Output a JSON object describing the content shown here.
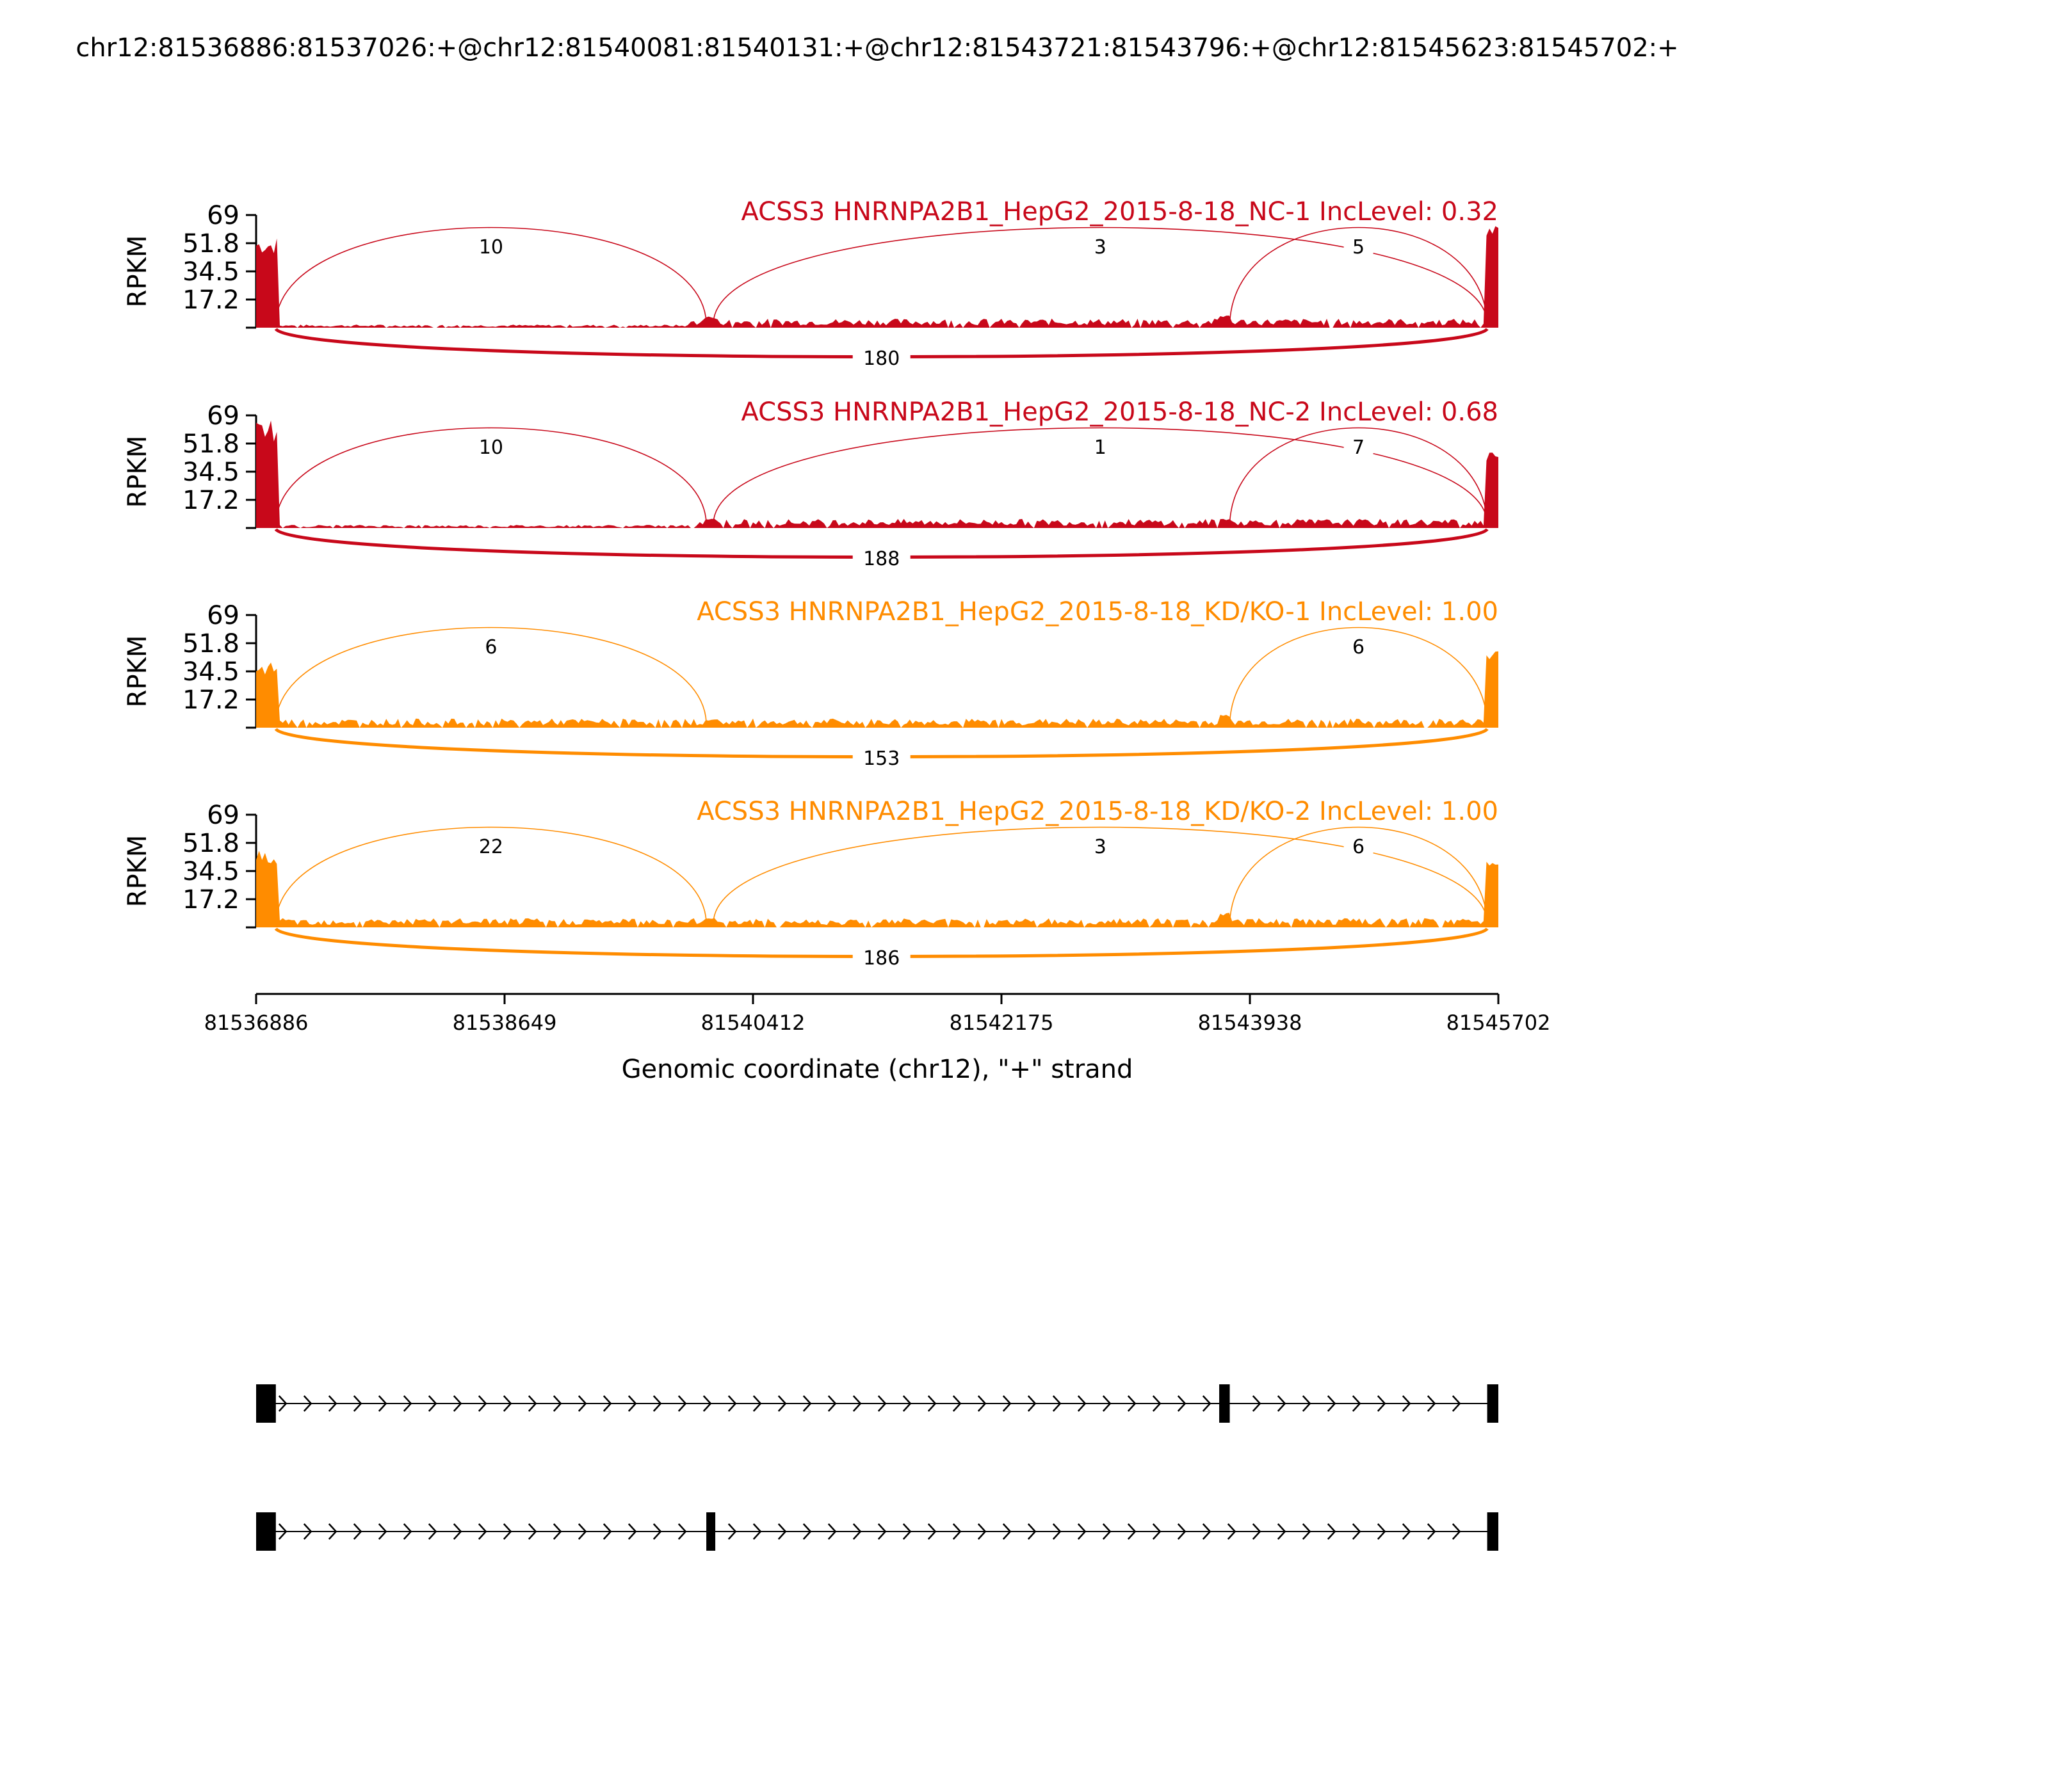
{
  "page_title": "chr12:81536886:81537026:+@chr12:81540081:81540131:+@chr12:81543721:81543796:+@chr12:81545623:81545702:+",
  "colors": {
    "nc": "#c8081a",
    "kd": "#ff8c00",
    "axis": "#000000",
    "model": "#000000"
  },
  "chart_data": {
    "type": "sashimi",
    "xlabel": "Genomic coordinate (chr12), \"+\" strand",
    "ylabel": "RPKM",
    "xlim": [
      81536886,
      81545702
    ],
    "xticks": [
      "81536886",
      "81538649",
      "81540412",
      "81542175",
      "81543938",
      "81545702"
    ],
    "ylim": [
      0,
      69
    ],
    "yticks": [
      "69",
      "51.8",
      "34.5",
      "17.2"
    ],
    "exons": [
      {
        "start": 81536886,
        "end": 81537026
      },
      {
        "start": 81540081,
        "end": 81540131
      },
      {
        "start": 81543721,
        "end": 81543796
      },
      {
        "start": 81545623,
        "end": 81545702
      }
    ],
    "tracks": [
      {
        "title": "ACSS3 HNRNPA2B1_HepG2_2015-8-18_NC-1 IncLevel: 0.32",
        "color_group": "nc",
        "exon_peaks": [
          56,
          7,
          8,
          63
        ],
        "junctions": [
          {
            "from": 81537026,
            "to": 81540081,
            "count": "10",
            "side": "top"
          },
          {
            "from": 81540131,
            "to": 81545623,
            "count": "3",
            "side": "top"
          },
          {
            "from": 81543796,
            "to": 81545623,
            "count": "5",
            "side": "top"
          },
          {
            "from": 81537026,
            "to": 81545623,
            "count": "180",
            "side": "bottom"
          }
        ]
      },
      {
        "title": "ACSS3 HNRNPA2B1_HepG2_2015-8-18_NC-2 IncLevel: 0.68",
        "color_group": "nc",
        "exon_peaks": [
          66,
          6,
          6,
          50
        ],
        "junctions": [
          {
            "from": 81537026,
            "to": 81540081,
            "count": "10",
            "side": "top"
          },
          {
            "from": 81540131,
            "to": 81545623,
            "count": "1",
            "side": "top"
          },
          {
            "from": 81543796,
            "to": 81545623,
            "count": "7",
            "side": "top"
          },
          {
            "from": 81537026,
            "to": 81545623,
            "count": "188",
            "side": "bottom"
          }
        ]
      },
      {
        "title": "ACSS3 HNRNPA2B1_HepG2_2015-8-18_KD/KO-1 IncLevel: 1.00",
        "color_group": "kd",
        "exon_peaks": [
          40,
          5,
          8,
          48
        ],
        "junctions": [
          {
            "from": 81537026,
            "to": 81540081,
            "count": "6",
            "side": "top"
          },
          {
            "from": 81543796,
            "to": 81545623,
            "count": "6",
            "side": "top"
          },
          {
            "from": 81537026,
            "to": 81545623,
            "count": "153",
            "side": "bottom"
          }
        ]
      },
      {
        "title": "ACSS3 HNRNPA2B1_HepG2_2015-8-18_KD/KO-2 IncLevel: 1.00",
        "color_group": "kd",
        "exon_peaks": [
          48,
          6,
          9,
          46
        ],
        "junctions": [
          {
            "from": 81537026,
            "to": 81540081,
            "count": "22",
            "side": "top"
          },
          {
            "from": 81540131,
            "to": 81545623,
            "count": "3",
            "side": "top"
          },
          {
            "from": 81543796,
            "to": 81545623,
            "count": "6",
            "side": "top"
          },
          {
            "from": 81537026,
            "to": 81545623,
            "count": "186",
            "side": "bottom"
          }
        ]
      }
    ],
    "isoforms": [
      {
        "exons": [
          0,
          2,
          3
        ]
      },
      {
        "exons": [
          0,
          1,
          3
        ]
      }
    ]
  }
}
